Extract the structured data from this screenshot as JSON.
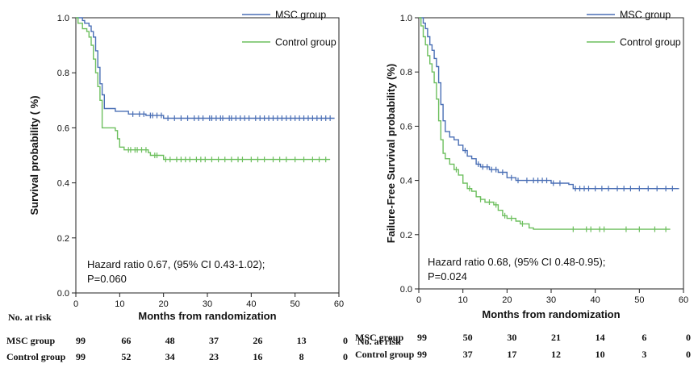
{
  "chart_data": [
    {
      "type": "line",
      "subtype": "kaplan-meier",
      "title": "",
      "xlabel": "Months from randomization",
      "ylabel": "Survival probability ( %)",
      "xlim": [
        0,
        60
      ],
      "ylim": [
        0.0,
        1.0
      ],
      "xticks": [
        "0",
        "10",
        "20",
        "30",
        "40",
        "50",
        "60"
      ],
      "yticks": [
        "0.0",
        "0.2",
        "0.4",
        "0.6",
        "0.8",
        "1.0"
      ],
      "legend": "top-right",
      "annotation": [
        "Hazard ratio 0.67, (95% CI 0.43-1.02);",
        "P=0.060"
      ],
      "series": [
        {
          "name": "MSC group",
          "color": "#4a6fb5",
          "steps": [
            [
              0,
              1.0
            ],
            [
              1.5,
              0.99
            ],
            [
              2,
              0.98
            ],
            [
              3,
              0.97
            ],
            [
              3.5,
              0.95
            ],
            [
              4,
              0.93
            ],
            [
              4.5,
              0.88
            ],
            [
              5,
              0.82
            ],
            [
              5.5,
              0.76
            ],
            [
              6,
              0.72
            ],
            [
              6.5,
              0.67
            ],
            [
              8,
              0.67
            ],
            [
              9,
              0.66
            ],
            [
              11,
              0.66
            ],
            [
              12,
              0.65
            ],
            [
              15,
              0.65
            ],
            [
              16,
              0.645
            ],
            [
              19,
              0.645
            ],
            [
              20,
              0.635
            ],
            [
              59,
              0.635
            ]
          ],
          "censor_x": [
            13,
            14.5,
            15.5,
            17,
            17.5,
            18.5,
            19.5,
            21,
            22.5,
            24,
            25.5,
            27,
            28,
            29,
            30.5,
            31,
            32,
            33,
            33.5,
            35,
            35.5,
            36.5,
            37.5,
            38.5,
            39.5,
            41,
            42,
            43,
            44,
            45,
            46,
            47,
            48,
            49,
            50,
            51,
            52,
            53,
            54,
            55,
            56,
            57,
            58
          ]
        },
        {
          "name": "Control group",
          "color": "#6dbf5e",
          "steps": [
            [
              0,
              1.0
            ],
            [
              0.5,
              0.98
            ],
            [
              1.5,
              0.96
            ],
            [
              2.5,
              0.95
            ],
            [
              3,
              0.93
            ],
            [
              3.5,
              0.9
            ],
            [
              4,
              0.85
            ],
            [
              4.5,
              0.8
            ],
            [
              5,
              0.75
            ],
            [
              5.5,
              0.7
            ],
            [
              6,
              0.6
            ],
            [
              9,
              0.59
            ],
            [
              9.5,
              0.56
            ],
            [
              10,
              0.53
            ],
            [
              11,
              0.52
            ],
            [
              16,
              0.52
            ],
            [
              16.5,
              0.51
            ],
            [
              17,
              0.5
            ],
            [
              19,
              0.5
            ],
            [
              20,
              0.485
            ],
            [
              58,
              0.485
            ]
          ],
          "censor_x": [
            12,
            12.5,
            13.5,
            14,
            15,
            16,
            18,
            18.5,
            20.5,
            21.5,
            23,
            24,
            25,
            26,
            27.5,
            28.5,
            29.5,
            31,
            32.5,
            34,
            35.5,
            37,
            38,
            40,
            41.5,
            43,
            45,
            46.5,
            48,
            50,
            52,
            54,
            55.5,
            57
          ]
        }
      ],
      "risk_table": {
        "header": "No. at risk",
        "rows": [
          {
            "label": "MSC group",
            "values": [
              "99",
              "66",
              "48",
              "37",
              "26",
              "13",
              "0"
            ]
          },
          {
            "label": "Control group",
            "values": [
              "99",
              "52",
              "34",
              "23",
              "16",
              "8",
              "0"
            ]
          }
        ]
      }
    },
    {
      "type": "line",
      "subtype": "kaplan-meier",
      "title": "",
      "xlabel": "Months from randomization",
      "ylabel": "Failure-Free Survival probability (%)",
      "xlim": [
        0,
        60
      ],
      "ylim": [
        0.0,
        1.0
      ],
      "xticks": [
        "0",
        "10",
        "20",
        "30",
        "40",
        "50",
        "60"
      ],
      "yticks": [
        "0.0",
        "0.2",
        "0.4",
        "0.6",
        "0.8",
        "1.0"
      ],
      "legend": "top-right",
      "annotation": [
        "Hazard ratio 0.68, (95% CI 0.48-0.95);",
        "P=0.024"
      ],
      "series": [
        {
          "name": "MSC group",
          "color": "#4a6fb5",
          "steps": [
            [
              0,
              1.0
            ],
            [
              1,
              0.98
            ],
            [
              1.5,
              0.96
            ],
            [
              2,
              0.93
            ],
            [
              2.5,
              0.9
            ],
            [
              3,
              0.88
            ],
            [
              3.5,
              0.85
            ],
            [
              4,
              0.82
            ],
            [
              4.5,
              0.76
            ],
            [
              5,
              0.68
            ],
            [
              5.5,
              0.62
            ],
            [
              6,
              0.58
            ],
            [
              7,
              0.56
            ],
            [
              8,
              0.55
            ],
            [
              9,
              0.53
            ],
            [
              10,
              0.51
            ],
            [
              11,
              0.49
            ],
            [
              12,
              0.48
            ],
            [
              13,
              0.46
            ],
            [
              14,
              0.45
            ],
            [
              16,
              0.44
            ],
            [
              18,
              0.43
            ],
            [
              20,
              0.41
            ],
            [
              22,
              0.4
            ],
            [
              30,
              0.39
            ],
            [
              34,
              0.385
            ],
            [
              35,
              0.37
            ],
            [
              59,
              0.37
            ]
          ],
          "censor_x": [
            10.5,
            13.5,
            14.5,
            15.5,
            16.5,
            17.5,
            19,
            21,
            22.5,
            24.5,
            26,
            27,
            28,
            29,
            30.5,
            32,
            35.5,
            36.5,
            37.5,
            38.5,
            40,
            41.5,
            43,
            45,
            46.5,
            48,
            50,
            52,
            54,
            56,
            57.5
          ]
        },
        {
          "name": "Control group",
          "color": "#6dbf5e",
          "steps": [
            [
              0,
              1.0
            ],
            [
              0.5,
              0.97
            ],
            [
              1,
              0.93
            ],
            [
              1.5,
              0.9
            ],
            [
              2,
              0.86
            ],
            [
              2.5,
              0.83
            ],
            [
              3,
              0.8
            ],
            [
              3.5,
              0.76
            ],
            [
              4,
              0.7
            ],
            [
              4.5,
              0.62
            ],
            [
              5,
              0.55
            ],
            [
              5.5,
              0.5
            ],
            [
              6,
              0.48
            ],
            [
              7,
              0.46
            ],
            [
              8,
              0.44
            ],
            [
              9,
              0.42
            ],
            [
              10,
              0.39
            ],
            [
              11,
              0.37
            ],
            [
              12,
              0.36
            ],
            [
              13,
              0.34
            ],
            [
              14,
              0.33
            ],
            [
              15,
              0.32
            ],
            [
              17,
              0.31
            ],
            [
              18,
              0.29
            ],
            [
              19,
              0.27
            ],
            [
              20,
              0.26
            ],
            [
              22,
              0.25
            ],
            [
              23,
              0.24
            ],
            [
              25,
              0.225
            ],
            [
              26,
              0.22
            ],
            [
              57,
              0.22
            ]
          ],
          "censor_x": [
            8.5,
            11.5,
            14,
            16,
            17.5,
            19.5,
            21,
            23.5,
            35,
            38,
            39,
            41,
            42,
            47,
            50,
            53.5,
            56
          ]
        }
      ],
      "risk_table": {
        "header": "No. at risk",
        "rows": [
          {
            "label": "MSC group",
            "values": [
              "99",
              "50",
              "30",
              "21",
              "14",
              "6",
              "0"
            ]
          },
          {
            "label": "Control group",
            "values": [
              "99",
              "37",
              "17",
              "12",
              "10",
              "3",
              "0"
            ]
          }
        ]
      }
    }
  ]
}
